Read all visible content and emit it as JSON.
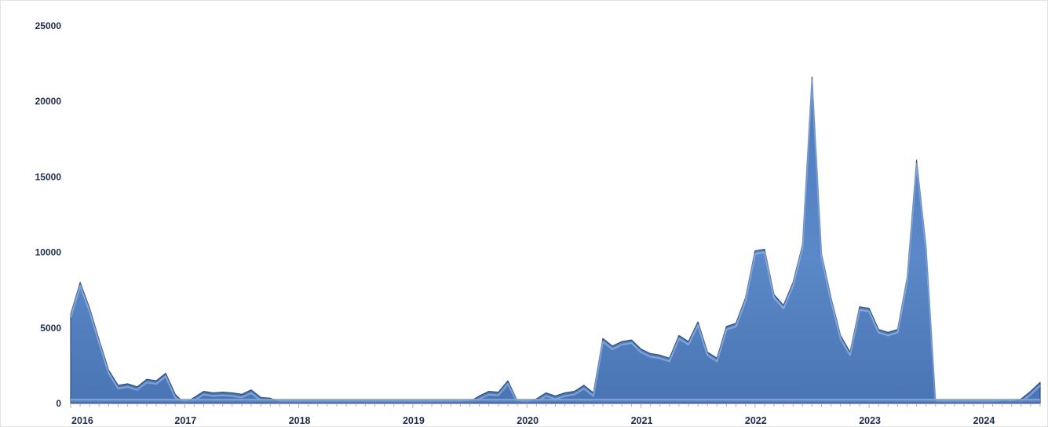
{
  "chart_data": {
    "type": "area",
    "title": "",
    "xlabel": "",
    "ylabel": "",
    "ylim": [
      0,
      25000
    ],
    "yticks": [
      0,
      5000,
      10000,
      15000,
      20000,
      25000
    ],
    "grid": false,
    "legend": "none",
    "x_start": "2016-01",
    "x_end": "2024-09",
    "year_labels": [
      "2016",
      "2017",
      "2018",
      "2019",
      "2020",
      "2021",
      "2022",
      "2023",
      "2024"
    ],
    "colors": {
      "fill": "#5a87c8",
      "edge": "#2f4f7f",
      "highlight": "#a9c7ee",
      "labels": "#1f2d4d"
    },
    "series": [
      {
        "values": [
          5900,
          8000,
          6300,
          4200,
          2200,
          1200,
          1300,
          1100,
          1600,
          1500,
          2000,
          600,
          0,
          400,
          800,
          700,
          750,
          700,
          600,
          900,
          400,
          350,
          80,
          40,
          40,
          50,
          30,
          20,
          30,
          30,
          40,
          30,
          20,
          30,
          40,
          30,
          30,
          20,
          30,
          40,
          60,
          80,
          120,
          500,
          800,
          750,
          1500,
          150,
          0,
          300,
          700,
          500,
          700,
          800,
          1200,
          700,
          4300,
          3800,
          4100,
          4200,
          3600,
          3300,
          3200,
          3000,
          4500,
          4100,
          5400,
          3400,
          3000,
          5100,
          5300,
          7000,
          10100,
          10200,
          7200,
          6500,
          8000,
          10500,
          21600,
          9900,
          7000,
          4500,
          3400,
          6400,
          6300,
          4900,
          4700,
          4900,
          8300,
          16100,
          10400,
          100,
          60,
          30,
          20,
          60,
          10,
          20,
          150,
          100,
          300,
          800,
          1400
        ]
      }
    ]
  }
}
